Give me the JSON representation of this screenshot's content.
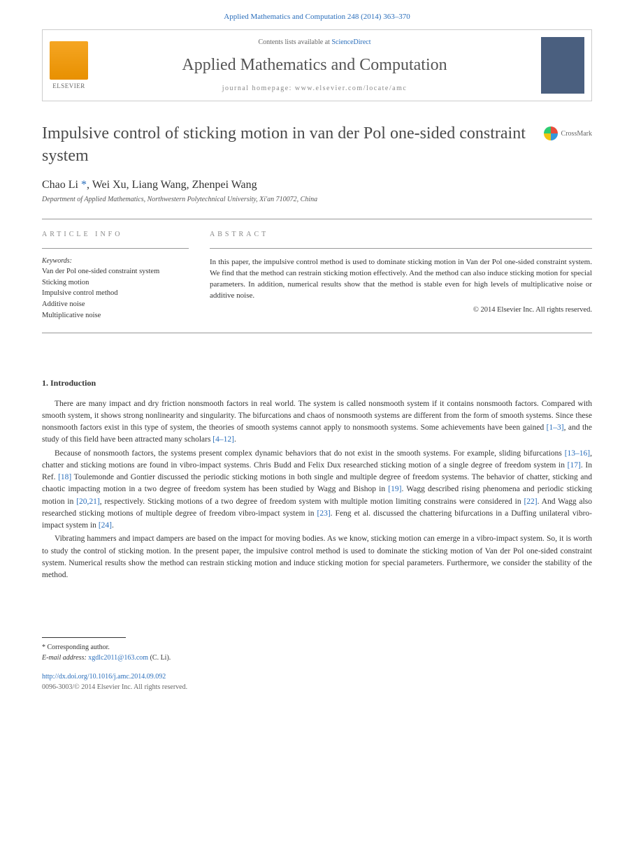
{
  "header": {
    "citation": "Applied Mathematics and Computation 248 (2014) 363–370",
    "contents_prefix": "Contents lists available at ",
    "contents_link": "ScienceDirect",
    "journal_name": "Applied Mathematics and Computation",
    "homepage_prefix": "journal homepage: ",
    "homepage_url": "www.elsevier.com/locate/amc",
    "elsevier_label": "ELSEVIER"
  },
  "crossmark": {
    "label": "CrossMark"
  },
  "article": {
    "title": "Impulsive control of sticking motion in van der Pol one-sided constraint system",
    "authors_html": "Chao Li <span class='corr'>*</span>, Wei Xu, Liang Wang, Zhenpei Wang",
    "affiliation": "Department of Applied Mathematics, Northwestern Polytechnical University, Xi'an 710072, China"
  },
  "labels": {
    "article_info": "ARTICLE INFO",
    "abstract": "ABSTRACT",
    "keywords": "Keywords:"
  },
  "keywords": [
    "Van der Pol one-sided constraint system",
    "Sticking motion",
    "Impulsive control method",
    "Additive noise",
    "Multiplicative noise"
  ],
  "abstract": {
    "text": "In this paper, the impulsive control method is used to dominate sticking motion in Van der Pol one-sided constraint system. We find that the method can restrain sticking motion effectively. And the method can also induce sticking motion for special parameters. In addition, numerical results show that the method is stable even for high levels of multiplicative noise or additive noise.",
    "copyright": "© 2014 Elsevier Inc. All rights reserved."
  },
  "sections": {
    "intro_heading": "1. Introduction",
    "para1": "There are many impact and dry friction nonsmooth factors in real world. The system is called nonsmooth system if it contains nonsmooth factors. Compared with smooth system, it shows strong nonlinearity and singularity. The bifurcations and chaos of nonsmooth systems are different from the form of smooth systems. Since these nonsmooth factors exist in this type of system, the theories of smooth systems cannot apply to nonsmooth systems. Some achievements have been gained <a class='ref-link'>[1–3]</a>, and the study of this field have been attracted many scholars <a class='ref-link'>[4–12]</a>.",
    "para2": "Because of nonsmooth factors, the systems present complex dynamic behaviors that do not exist in the smooth systems. For example, sliding bifurcations <a class='ref-link'>[13–16]</a>, chatter and sticking motions are found in vibro-impact systems. Chris Budd and Felix Dux researched sticking motion of a single degree of freedom system in <a class='ref-link'>[17]</a>. In Ref. <a class='ref-link'>[18]</a> Toulemonde and Gontier discussed the periodic sticking motions in both single and multiple degree of freedom systems. The behavior of chatter, sticking and chaotic impacting motion in a two degree of freedom system has been studied by Wagg and Bishop in <a class='ref-link'>[19]</a>. Wagg described rising phenomena and periodic sticking motion in <a class='ref-link'>[20,21]</a>, respectively. Sticking motions of a two degree of freedom system with multiple motion limiting constrains were considered in <a class='ref-link'>[22]</a>. And Wagg also researched sticking motions of multiple degree of freedom vibro-impact system in <a class='ref-link'>[23]</a>. Feng et al. discussed the chattering bifurcations in a Duffing unilateral vibro-impact system in <a class='ref-link'>[24]</a>.",
    "para3": "Vibrating hammers and impact dampers are based on the impact for moving bodies. As we know, sticking motion can emerge in a vibro-impact system. So, it is worth to study the control of sticking motion. In the present paper, the impulsive control method is used to dominate the sticking motion of Van der Pol one-sided constraint system. Numerical results show the method can restrain sticking motion and induce sticking motion for special parameters. Furthermore, we consider the stability of the method."
  },
  "footer": {
    "corr_label": "* Corresponding author.",
    "email_label": "E-mail address: ",
    "email": "xgdlc2011@163.com",
    "email_suffix": " (C. Li).",
    "doi": "http://dx.doi.org/10.1016/j.amc.2014.09.092",
    "issn_line": "0096-3003/© 2014 Elsevier Inc. All rights reserved."
  },
  "colors": {
    "link": "#2a6ebb",
    "text": "#333333",
    "muted": "#888888",
    "elsevier_orange": "#f5a623"
  }
}
